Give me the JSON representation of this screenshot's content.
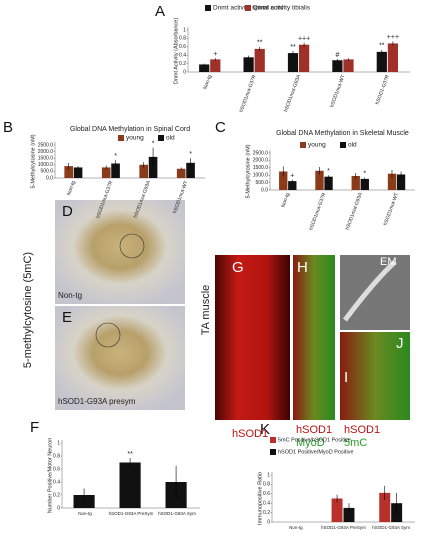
{
  "chart_data": [
    {
      "type": "bar",
      "ylabel": "Dnmt Activity (Absorbance)",
      "categories": [
        "Non-tg",
        "hSOD1mut-G37R",
        "hSOD1mut-G93A",
        "hSOD1mut-WT",
        "hSOD1-G37R"
      ],
      "series": [
        {
          "name": "Dnmt activity spinal cord",
          "color": "#111111",
          "values": [
            0.18,
            0.35,
            0.45,
            0.28,
            0.48
          ],
          "errors": [
            0.02,
            0.04,
            0.05,
            0.03,
            0.05
          ]
        },
        {
          "name": "Dnmt activity tibialis",
          "color": "#a0302a",
          "values": [
            0.3,
            0.55,
            0.65,
            0.3,
            0.68
          ],
          "errors": [
            0.03,
            0.05,
            0.05,
            0.03,
            0.05
          ]
        }
      ],
      "ylim": [
        0,
        1
      ],
      "yticks": [
        0,
        0.2,
        0.4,
        0.6,
        0.8,
        1
      ],
      "annotations": [
        {
          "text": "+",
          "category": "Non-tg",
          "series": "Dnmt activity tibialis"
        },
        {
          "text": "**",
          "category": "hSOD1mut-G37R",
          "series": "Dnmt activity tibialis"
        },
        {
          "text": "**",
          "category": "hSOD1mut-G93A",
          "series": "Dnmt activity spinal cord"
        },
        {
          "text": "+++",
          "category": "hSOD1mut-G93A",
          "series": "Dnmt activity tibialis"
        },
        {
          "text": "#",
          "category": "hSOD1mut-WT",
          "series": "Dnmt activity spinal cord"
        },
        {
          "text": "**",
          "category": "hSOD1-G37R",
          "series": "Dnmt activity spinal cord"
        },
        {
          "text": "+++",
          "category": "hSOD1-G37R",
          "series": "Dnmt activity tibialis"
        }
      ]
    },
    {
      "type": "bar",
      "title": "Global DNA Methylation in Spinal Cord",
      "ylabel": "5-Methylcytosine (nM)",
      "categories": [
        "Non-tg",
        "hSOD1mut-G37R",
        "hSOD1mut-G93A",
        "hSOD1mut-WT"
      ],
      "series": [
        {
          "name": "young",
          "color": "#8b3a1a",
          "values": [
            900,
            800,
            1000,
            700
          ],
          "errors": [
            250,
            150,
            200,
            100
          ]
        },
        {
          "name": "old",
          "color": "#111111",
          "values": [
            800,
            1100,
            1600,
            1150
          ],
          "errors": [
            100,
            250,
            700,
            350
          ]
        }
      ],
      "ylim": [
        0,
        2500
      ],
      "yticks": [
        {
          "value": 0,
          "label": "0.0"
        },
        {
          "value": 500,
          "label": "500.0"
        },
        {
          "value": 1000,
          "label": "1000.0"
        },
        {
          "value": 1500,
          "label": "1500.0"
        },
        {
          "value": 2000,
          "label": "2000.0"
        },
        {
          "value": 2500,
          "label": "2500.0"
        }
      ],
      "annotations": [
        {
          "text": "*",
          "category": "hSOD1mut-G37R",
          "series": "old"
        },
        {
          "text": "*",
          "category": "hSOD1mut-G93A",
          "series": "old"
        },
        {
          "text": "*",
          "category": "hSOD1mut-WT",
          "series": "old"
        }
      ]
    },
    {
      "type": "bar",
      "title": "Global DNA Methylation in Skeletal Muscle",
      "ylabel": "5-Methylcytosine (nM)",
      "categories": [
        "Non-tg",
        "hSOD1mut-G37R",
        "hSOD1mut-G93A",
        "hSOD1mut-WT"
      ],
      "series": [
        {
          "name": "young",
          "color": "#8b3a1a",
          "values": [
            1250,
            1300,
            950,
            1100
          ],
          "errors": [
            350,
            250,
            200,
            250
          ]
        },
        {
          "name": "old",
          "color": "#111111",
          "values": [
            600,
            900,
            750,
            1050
          ],
          "errors": [
            100,
            100,
            100,
            200
          ]
        }
      ],
      "ylim": [
        0,
        2500
      ],
      "yticks": [
        {
          "value": 0,
          "label": "0.0"
        },
        {
          "value": 500,
          "label": "500.0"
        },
        {
          "value": 1000,
          "label": "1000.0"
        },
        {
          "value": 1500,
          "label": "1500.0"
        },
        {
          "value": 2000,
          "label": "2000.0"
        },
        {
          "value": 2500,
          "label": "2500.0"
        }
      ],
      "annotations": [
        {
          "text": "+",
          "category": "Non-tg",
          "series": "old"
        },
        {
          "text": "*",
          "category": "hSOD1mut-G37R",
          "series": "old"
        },
        {
          "text": "*",
          "category": "hSOD1mut-G93A",
          "series": "old"
        }
      ]
    },
    {
      "type": "bar",
      "ylabel": "Number Positive/Motor Neuron",
      "categories": [
        "Non-tg",
        "hSOD1-G93A PreSym",
        "hSOD1-G93A Sym"
      ],
      "series": [
        {
          "color": "#111111",
          "values": [
            0.2,
            0.7,
            0.4
          ],
          "errors": [
            0.1,
            0.07,
            0.25
          ]
        }
      ],
      "ylim": [
        0,
        1
      ],
      "yticks": [
        0,
        0.2,
        0.4,
        0.6,
        0.8,
        1
      ],
      "annotations": [
        {
          "text": "**",
          "category": "hSOD1-G93A PreSym"
        }
      ]
    },
    {
      "type": "bar",
      "ylabel": "Immunopositive Ratio",
      "categories": [
        "Non-tg",
        "hSOD1-G93A PreSym",
        "hSOD1-G93A Sym"
      ],
      "series": [
        {
          "name": "5mC Positive/hSOD1 Positive",
          "color": "#b8302a",
          "values": [
            null,
            0.5,
            0.62
          ],
          "errors": [
            null,
            0.08,
            0.15
          ]
        },
        {
          "name": "hSOD1 Positive/MyoD Positive",
          "color": "#111111",
          "values": [
            null,
            0.3,
            0.4
          ],
          "errors": [
            null,
            0.1,
            0.22
          ]
        }
      ],
      "ylim": [
        0,
        1
      ],
      "yticks": [
        0,
        0.2,
        0.4,
        0.6,
        0.8,
        1
      ]
    }
  ],
  "panel_letters": [
    "A",
    "B",
    "C",
    "D",
    "E",
    "F",
    "G",
    "H",
    "I",
    "J",
    "K"
  ],
  "image_labels": {
    "y_label": "5-methylcytosine (5mC)",
    "d": "Non-tg",
    "e": "hSOD1-G93A presym",
    "muscle": "TA muscle",
    "g": "hSOD1",
    "h1": "hSOD1",
    "h2": "MyoD",
    "i1": "hSOD1",
    "i2": "5mC",
    "em": "EM"
  }
}
